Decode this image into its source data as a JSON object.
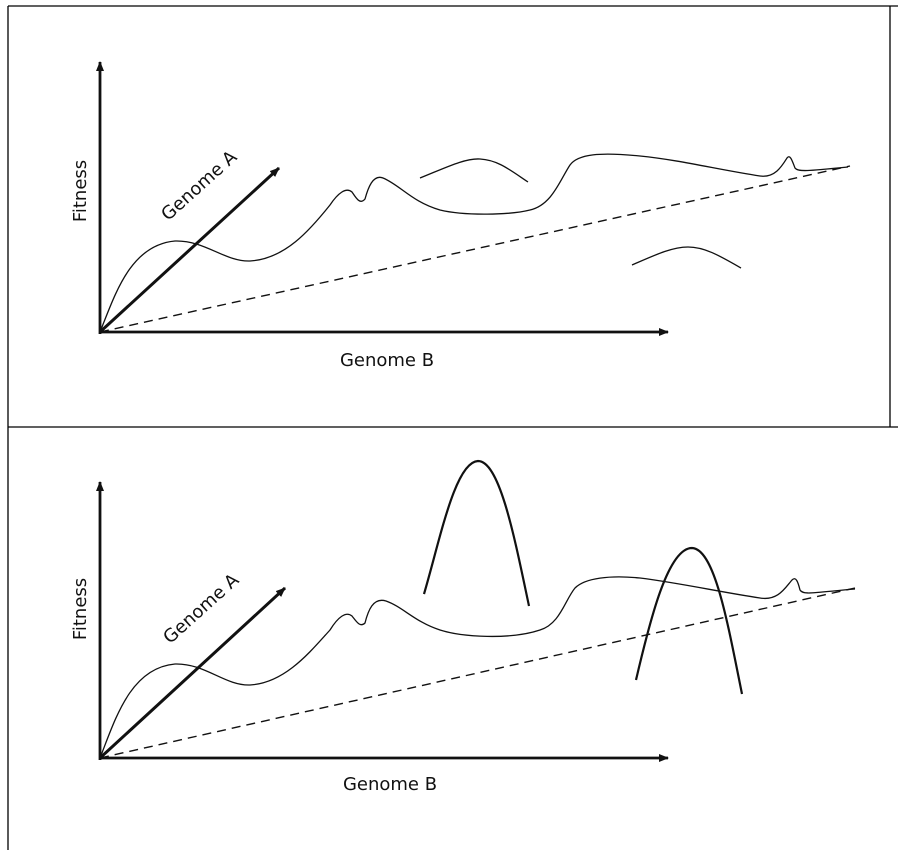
{
  "panels": [
    {
      "y_axis_label": "Fitness",
      "diagonal_axis_label": "Genome A",
      "x_axis_label": "Genome B"
    },
    {
      "y_axis_label": "Fitness",
      "diagonal_axis_label": "Genome A",
      "x_axis_label": "Genome B"
    }
  ]
}
